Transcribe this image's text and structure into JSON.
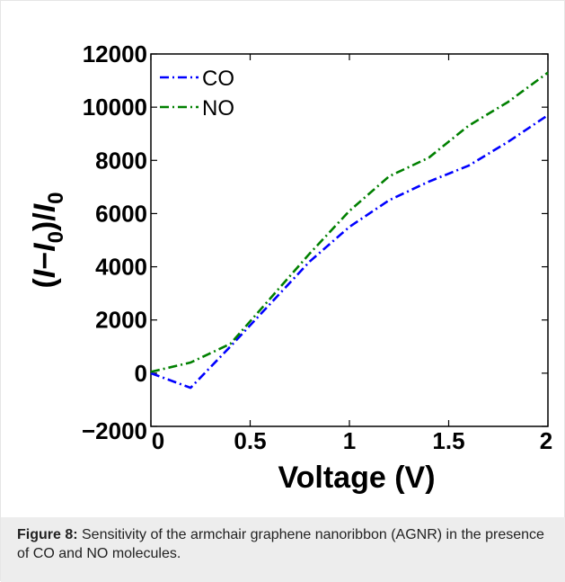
{
  "chart_data": {
    "type": "line",
    "x": [
      0,
      0.2,
      0.4,
      0.6,
      0.8,
      1.0,
      1.2,
      1.4,
      1.6,
      1.8,
      2.0
    ],
    "series": [
      {
        "name": "CO",
        "values": [
          0,
          -550,
          1000,
          2600,
          4200,
          5500,
          6500,
          7200,
          7800,
          8700,
          9700
        ],
        "color": "#0000ff",
        "dash": "dash-dot"
      },
      {
        "name": "NO",
        "values": [
          50,
          400,
          1100,
          2800,
          4500,
          6100,
          7400,
          8100,
          9300,
          10200,
          11300
        ],
        "color": "#008000",
        "dash": "dash-dot"
      }
    ],
    "xlabel": "Voltage (V)",
    "ylabel": {
      "open": "(",
      "I1": "I",
      "dash": "−",
      "I2": "I",
      "sub": "0",
      "close": ")/",
      "I3": "I",
      "sub2": "0"
    },
    "xlim": [
      0,
      2
    ],
    "ylim": [
      -2000,
      12000
    ],
    "xticks": [
      0,
      0.5,
      1,
      1.5,
      2
    ],
    "xtick_labels": [
      "0",
      "0.5",
      "1",
      "1.5",
      "2"
    ],
    "yticks": [
      -2000,
      0,
      2000,
      4000,
      6000,
      8000,
      10000,
      12000
    ],
    "ytick_labels": [
      "−2000",
      "0",
      "2000",
      "4000",
      "6000",
      "8000",
      "10000",
      "12000"
    ],
    "legend_position": "top-left",
    "grid": false
  },
  "caption": {
    "label": "Figure 8:",
    "text": " Sensitivity of the armchair graphene nanoribbon (AGNR) in the presence of CO and NO molecules."
  }
}
